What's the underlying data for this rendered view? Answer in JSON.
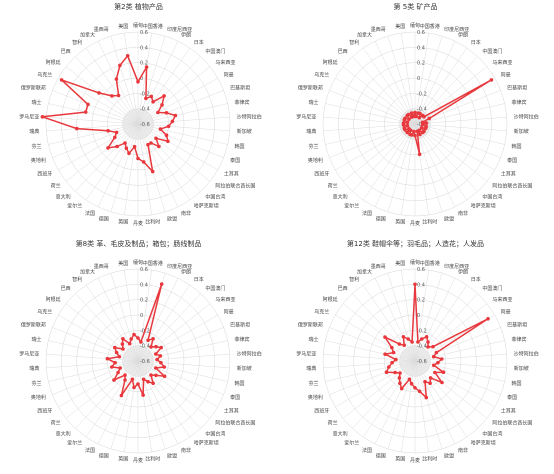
{
  "colors": {
    "series": "#e8383d",
    "grid": "#d6d6d6",
    "center": "#ededed"
  },
  "chart_data": [
    {
      "type": "radar",
      "title": "第2类 植物产品",
      "rlim": [
        -0.6,
        0.6
      ],
      "ticks": [
        "0.6",
        "0.4",
        "0.2",
        "0",
        "-0.2",
        "-0.4",
        "-0.6"
      ],
      "categories": [
        "缅甸",
        "中国香港",
        "印度尼西亚",
        "伊朗",
        "日本",
        "中国澳门",
        "马来西亚",
        "阿曼",
        "巴基斯坦",
        "菲律宾",
        "沙特阿拉伯",
        "新加坡",
        "韩国",
        "泰国",
        "土耳其",
        "阿拉伯联合酋长国",
        "中国台湾",
        "哈萨克斯坦",
        "南非",
        "欧盟",
        "比利时",
        "丹麦",
        "英国",
        "德国",
        "法国",
        "爱尔兰",
        "意大利",
        "荷兰",
        "西班牙",
        "奥地利",
        "芬兰",
        "瑞典",
        "罗马尼亚",
        "瑞士",
        "俄罗斯联邦",
        "乌克兰",
        "阿根廷",
        "巴西",
        "智利",
        "加拿大",
        "墨西哥",
        "美国"
      ],
      "values": [
        -0.05,
        0.15,
        -0.25,
        -0.2,
        -0.25,
        -0.1,
        -0.2,
        -0.3,
        -0.2,
        -0.1,
        -0.15,
        -0.2,
        -0.3,
        -0.2,
        -0.15,
        -0.3,
        -0.2,
        -0.3,
        -0.3,
        0.05,
        -0.1,
        -0.15,
        -0.3,
        -0.2,
        -0.25,
        -0.3,
        -0.2,
        -0.1,
        -0.25,
        -0.3,
        -0.2,
        0.2,
        0.65,
        0.1,
        0.1,
        0.55,
        0.05,
        -0.1,
        -0.15,
        0.05,
        0.2,
        0.3
      ]
    },
    {
      "type": "radar",
      "title": "第 5类 矿产品",
      "rlim": [
        -0.6,
        0.6
      ],
      "ticks": [
        "0.6",
        "0.4",
        "0.2",
        "0",
        "-0.2",
        "-0.4",
        "-0.6"
      ],
      "categories": [
        "缅甸",
        "中国香港",
        "印度尼西亚",
        "伊朗",
        "日本",
        "中国澳门",
        "马来西亚",
        "阿曼",
        "巴基斯坦",
        "菲律宾",
        "沙特阿拉伯",
        "新加坡",
        "韩国",
        "泰国",
        "土耳其",
        "阿拉伯联合酋长国",
        "中国台湾",
        "哈萨克斯坦",
        "南非",
        "欧盟",
        "比利时",
        "丹麦",
        "英国",
        "德国",
        "法国",
        "爱尔兰",
        "意大利",
        "荷兰",
        "西班牙",
        "奥地利",
        "芬兰",
        "瑞典",
        "罗马尼亚",
        "瑞士",
        "俄罗斯联邦",
        "乌克兰",
        "阿根廷",
        "巴西",
        "智利",
        "加拿大",
        "墨西哥",
        "美国"
      ],
      "values": [
        -0.45,
        -0.5,
        -0.45,
        -0.45,
        -0.5,
        -0.45,
        -0.45,
        0.55,
        -0.4,
        -0.5,
        -0.45,
        -0.5,
        -0.45,
        -0.45,
        -0.5,
        -0.45,
        -0.45,
        -0.5,
        -0.45,
        -0.5,
        -0.2,
        -0.45,
        -0.5,
        -0.45,
        -0.45,
        -0.5,
        -0.45,
        -0.5,
        -0.45,
        -0.45,
        -0.5,
        -0.45,
        -0.45,
        -0.5,
        -0.45,
        -0.45,
        -0.5,
        -0.45,
        -0.45,
        -0.5,
        -0.45,
        -0.5
      ]
    },
    {
      "type": "radar",
      "title": "第8类 革、毛皮及制品；箱包；肠线制品",
      "rlim": [
        -0.6,
        0.6
      ],
      "ticks": [
        "0.6",
        "0.4",
        "0.2",
        "0",
        "-0.2",
        "-0.4",
        "-0.6"
      ],
      "categories": [
        "缅甸",
        "中国香港",
        "印度尼西亚",
        "伊朗",
        "日本",
        "中国澳门",
        "马来西亚",
        "阿曼",
        "巴基斯坦",
        "菲律宾",
        "沙特阿拉伯",
        "新加坡",
        "韩国",
        "泰国",
        "土耳其",
        "阿拉伯联合酋长国",
        "中国台湾",
        "哈萨克斯坦",
        "南非",
        "欧盟",
        "比利时",
        "丹麦",
        "英国",
        "德国",
        "法国",
        "爱尔兰",
        "意大利",
        "荷兰",
        "西班牙",
        "奥地利",
        "芬兰",
        "瑞典",
        "罗马尼亚",
        "瑞士",
        "俄罗斯联邦",
        "乌克兰",
        "阿根廷",
        "巴西",
        "智利",
        "加拿大",
        "墨西哥",
        "美国"
      ],
      "values": [
        -0.3,
        -0.35,
        0.45,
        -0.3,
        -0.25,
        -0.35,
        -0.3,
        -0.25,
        -0.35,
        -0.3,
        -0.35,
        -0.3,
        -0.25,
        -0.35,
        -0.2,
        -0.3,
        -0.35,
        -0.25,
        -0.3,
        -0.35,
        -0.15,
        -0.3,
        -0.25,
        -0.35,
        -0.1,
        -0.3,
        -0.35,
        -0.2,
        -0.3,
        -0.35,
        -0.25,
        -0.3,
        -0.2,
        -0.35,
        -0.3,
        -0.25,
        -0.35,
        -0.3,
        -0.25,
        -0.35,
        -0.3,
        -0.25
      ]
    },
    {
      "type": "radar",
      "title": "第12类 鞋帽伞等；羽毛品；人造花；人发品",
      "rlim": [
        -0.6,
        0.6
      ],
      "ticks": [
        "0.6",
        "0.4",
        "0.2",
        "0",
        "-0.2",
        "-0.4",
        "-0.6"
      ],
      "categories": [
        "缅甸",
        "中国香港",
        "印度尼西亚",
        "伊朗",
        "日本",
        "中国澳门",
        "马来西亚",
        "阿曼",
        "巴基斯坦",
        "菲律宾",
        "沙特阿拉伯",
        "新加坡",
        "韩国",
        "泰国",
        "土耳其",
        "阿拉伯联合酋长国",
        "中国台湾",
        "哈萨克斯坦",
        "南非",
        "欧盟",
        "比利时",
        "丹麦",
        "英国",
        "德国",
        "法国",
        "爱尔兰",
        "意大利",
        "荷兰",
        "西班牙",
        "奥地利",
        "芬兰",
        "瑞典",
        "罗马尼亚",
        "瑞士",
        "俄罗斯联邦",
        "乌克兰",
        "阿根廷",
        "巴西",
        "智利",
        "加拿大",
        "墨西哥",
        "美国"
      ],
      "values": [
        0.4,
        -0.35,
        -0.3,
        -0.25,
        -0.3,
        -0.35,
        -0.3,
        0.5,
        -0.3,
        -0.35,
        -0.25,
        -0.3,
        -0.35,
        -0.2,
        -0.3,
        -0.15,
        -0.3,
        -0.25,
        -0.3,
        -0.1,
        -0.2,
        -0.25,
        -0.3,
        -0.35,
        -0.2,
        -0.25,
        -0.3,
        -0.35,
        -0.3,
        -0.2,
        -0.25,
        -0.3,
        -0.35,
        -0.2,
        -0.3,
        -0.25,
        -0.1,
        -0.3,
        -0.35,
        -0.25,
        -0.3,
        -0.35
      ]
    }
  ]
}
